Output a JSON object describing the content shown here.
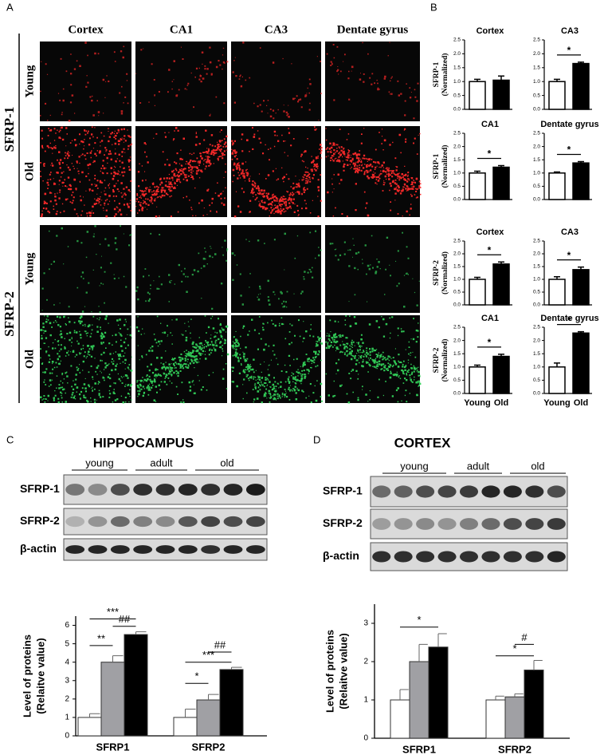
{
  "panel_labels": [
    "A",
    "B",
    "C",
    "D"
  ],
  "images": {
    "columns": [
      "Cortex",
      "CA1",
      "CA3",
      "Dentate gyrus"
    ],
    "groups": [
      {
        "label": "SFRP-1",
        "rows": [
          "Young",
          "Old"
        ]
      },
      {
        "label": "SFRP-2",
        "rows": [
          "Young",
          "Old"
        ]
      }
    ]
  },
  "blots": [
    {
      "title": "HIPPOCAMPUS",
      "groups": [
        "young",
        "adult",
        "old"
      ],
      "rows": [
        "SFRP-1",
        "SFRP-2",
        "β-actin"
      ]
    },
    {
      "title": "CORTEX",
      "groups": [
        "young",
        "adult",
        "old"
      ],
      "rows": [
        "SFRP-1",
        "SFRP-2",
        "β-actin"
      ]
    }
  ],
  "chart_data": [
    {
      "type": "bar",
      "title": "Cortex",
      "ylabel": [
        "SFRP-1",
        "(Normalized)"
      ],
      "categories": [
        null,
        null
      ],
      "values": [
        1.0,
        1.05
      ],
      "errors": [
        0.08,
        0.15
      ],
      "colors": [
        "#ffffff",
        "#000000"
      ],
      "ylim": [
        0,
        2.5
      ],
      "yticks": [
        {
          "value": 0,
          "label": "0.0"
        },
        0.5,
        {
          "value": 1,
          "label": "1.0"
        },
        1.5,
        {
          "value": 2,
          "label": "2.0"
        },
        2.5
      ],
      "annotations": []
    },
    {
      "type": "bar",
      "title": "CA3",
      "categories": [
        null,
        null
      ],
      "values": [
        1.0,
        1.65
      ],
      "errors": [
        0.08,
        0.05
      ],
      "colors": [
        "#ffffff",
        "#000000"
      ],
      "ylim": [
        0,
        2.5
      ],
      "yticks": [
        {
          "value": 0,
          "label": "0.0"
        },
        0.5,
        {
          "value": 1,
          "label": "1.0"
        },
        1.5,
        {
          "value": 2,
          "label": "2.0"
        },
        2.5
      ],
      "annotations": [
        "*"
      ]
    },
    {
      "type": "bar",
      "title": "CA1",
      "ylabel": [
        "SFRP-1",
        "(Normalized)"
      ],
      "categories": [
        null,
        null
      ],
      "values": [
        1.0,
        1.22
      ],
      "errors": [
        0.07,
        0.06
      ],
      "colors": [
        "#ffffff",
        "#000000"
      ],
      "ylim": [
        0,
        2.5
      ],
      "yticks": [
        {
          "value": 0,
          "label": "0.0"
        },
        0.5,
        {
          "value": 1,
          "label": "1.0"
        },
        1.5,
        {
          "value": 2,
          "label": "2.0"
        },
        2.5
      ],
      "annotations": [
        "*"
      ]
    },
    {
      "type": "bar",
      "title": "Dentate gyrus",
      "categories": [
        null,
        null
      ],
      "values": [
        1.0,
        1.38
      ],
      "errors": [
        0.04,
        0.05
      ],
      "colors": [
        "#ffffff",
        "#000000"
      ],
      "ylim": [
        0,
        2.5
      ],
      "yticks": [
        {
          "value": 0,
          "label": "0.0"
        },
        0.5,
        {
          "value": 1,
          "label": "1.0"
        },
        1.5,
        {
          "value": 2,
          "label": "2.0"
        },
        2.5
      ],
      "annotations": [
        "*"
      ]
    },
    {
      "type": "bar",
      "title": "Cortex",
      "ylabel": [
        "SFRP-2",
        "(Normalized)"
      ],
      "categories": [
        null,
        null
      ],
      "values": [
        1.0,
        1.6
      ],
      "errors": [
        0.08,
        0.08
      ],
      "colors": [
        "#ffffff",
        "#000000"
      ],
      "ylim": [
        0,
        2.5
      ],
      "yticks": [
        {
          "value": 0,
          "label": "0.0"
        },
        0.5,
        {
          "value": 1,
          "label": "1.0"
        },
        1.5,
        {
          "value": 2,
          "label": "2.0"
        },
        2.5
      ],
      "annotations": [
        "*"
      ]
    },
    {
      "type": "bar",
      "title": "CA3",
      "categories": [
        null,
        null
      ],
      "values": [
        1.0,
        1.38
      ],
      "errors": [
        0.1,
        0.1
      ],
      "colors": [
        "#ffffff",
        "#000000"
      ],
      "ylim": [
        0,
        2.5
      ],
      "yticks": [
        {
          "value": 0,
          "label": "0.0"
        },
        0.5,
        {
          "value": 1,
          "label": "1.0"
        },
        1.5,
        {
          "value": 2,
          "label": "2.0"
        },
        2.5
      ],
      "annotations": [
        "*"
      ]
    },
    {
      "type": "bar",
      "title": "CA1",
      "ylabel": [
        "SFRP-2",
        "(Normalized)"
      ],
      "categories": [
        "Young",
        "Old"
      ],
      "values": [
        1.0,
        1.4
      ],
      "errors": [
        0.07,
        0.08
      ],
      "colors": [
        "#ffffff",
        "#000000"
      ],
      "ylim": [
        0,
        2.5
      ],
      "yticks": [
        {
          "value": 0,
          "label": "0.0"
        },
        0.5,
        {
          "value": 1,
          "label": "1.0"
        },
        1.5,
        {
          "value": 2,
          "label": "2.0"
        },
        2.5
      ],
      "annotations": [
        "*"
      ]
    },
    {
      "type": "bar",
      "title": "Dentate gyrus",
      "categories": [
        "Young",
        "Old"
      ],
      "values": [
        1.0,
        2.28
      ],
      "errors": [
        0.15,
        0.05
      ],
      "colors": [
        "#ffffff",
        "#000000"
      ],
      "ylim": [
        0,
        2.5
      ],
      "yticks": [
        {
          "value": 0,
          "label": "0.0"
        },
        0.5,
        {
          "value": 1,
          "label": "1.0"
        },
        1.5,
        {
          "value": 2,
          "label": "2.0"
        },
        2.5
      ],
      "annotations": [
        "*"
      ]
    },
    {
      "type": "grouped_bar",
      "ylabel": [
        "Level of proteins",
        "(Relaitve value)"
      ],
      "categories": [
        "SFRP1",
        "SFRP2"
      ],
      "series": [
        {
          "color": "#ffffff",
          "values": [
            1.0,
            1.0
          ],
          "errors": [
            0.2,
            0.45
          ]
        },
        {
          "color": "#a0a0a4",
          "values": [
            4.0,
            1.95
          ],
          "errors": [
            0.35,
            0.3
          ]
        },
        {
          "color": "#000000",
          "values": [
            5.5,
            3.6
          ],
          "errors": [
            0.15,
            0.12
          ]
        }
      ],
      "ylim": [
        0,
        6.5
      ],
      "yticks": [
        0,
        1,
        2,
        3,
        4,
        5,
        6
      ],
      "annotations": [
        "***",
        "**",
        "##",
        "***",
        "*",
        "##"
      ]
    },
    {
      "type": "grouped_bar",
      "ylabel": [
        "Level of proteins",
        "(Relaitve value)"
      ],
      "categories": [
        "SFRP1",
        "SFRP2"
      ],
      "series": [
        {
          "color": "#ffffff",
          "values": [
            1.0,
            1.0
          ],
          "errors": [
            0.27,
            0.1
          ]
        },
        {
          "color": "#a0a0a4",
          "values": [
            2.0,
            1.08
          ],
          "errors": [
            0.45,
            0.08
          ]
        },
        {
          "color": "#000000",
          "values": [
            2.38,
            1.78
          ],
          "errors": [
            0.35,
            0.25
          ]
        }
      ],
      "ylim": [
        0,
        3.5
      ],
      "yticks": [
        0,
        1,
        2,
        3
      ],
      "annotations": [
        "*",
        "#",
        "*"
      ]
    }
  ]
}
